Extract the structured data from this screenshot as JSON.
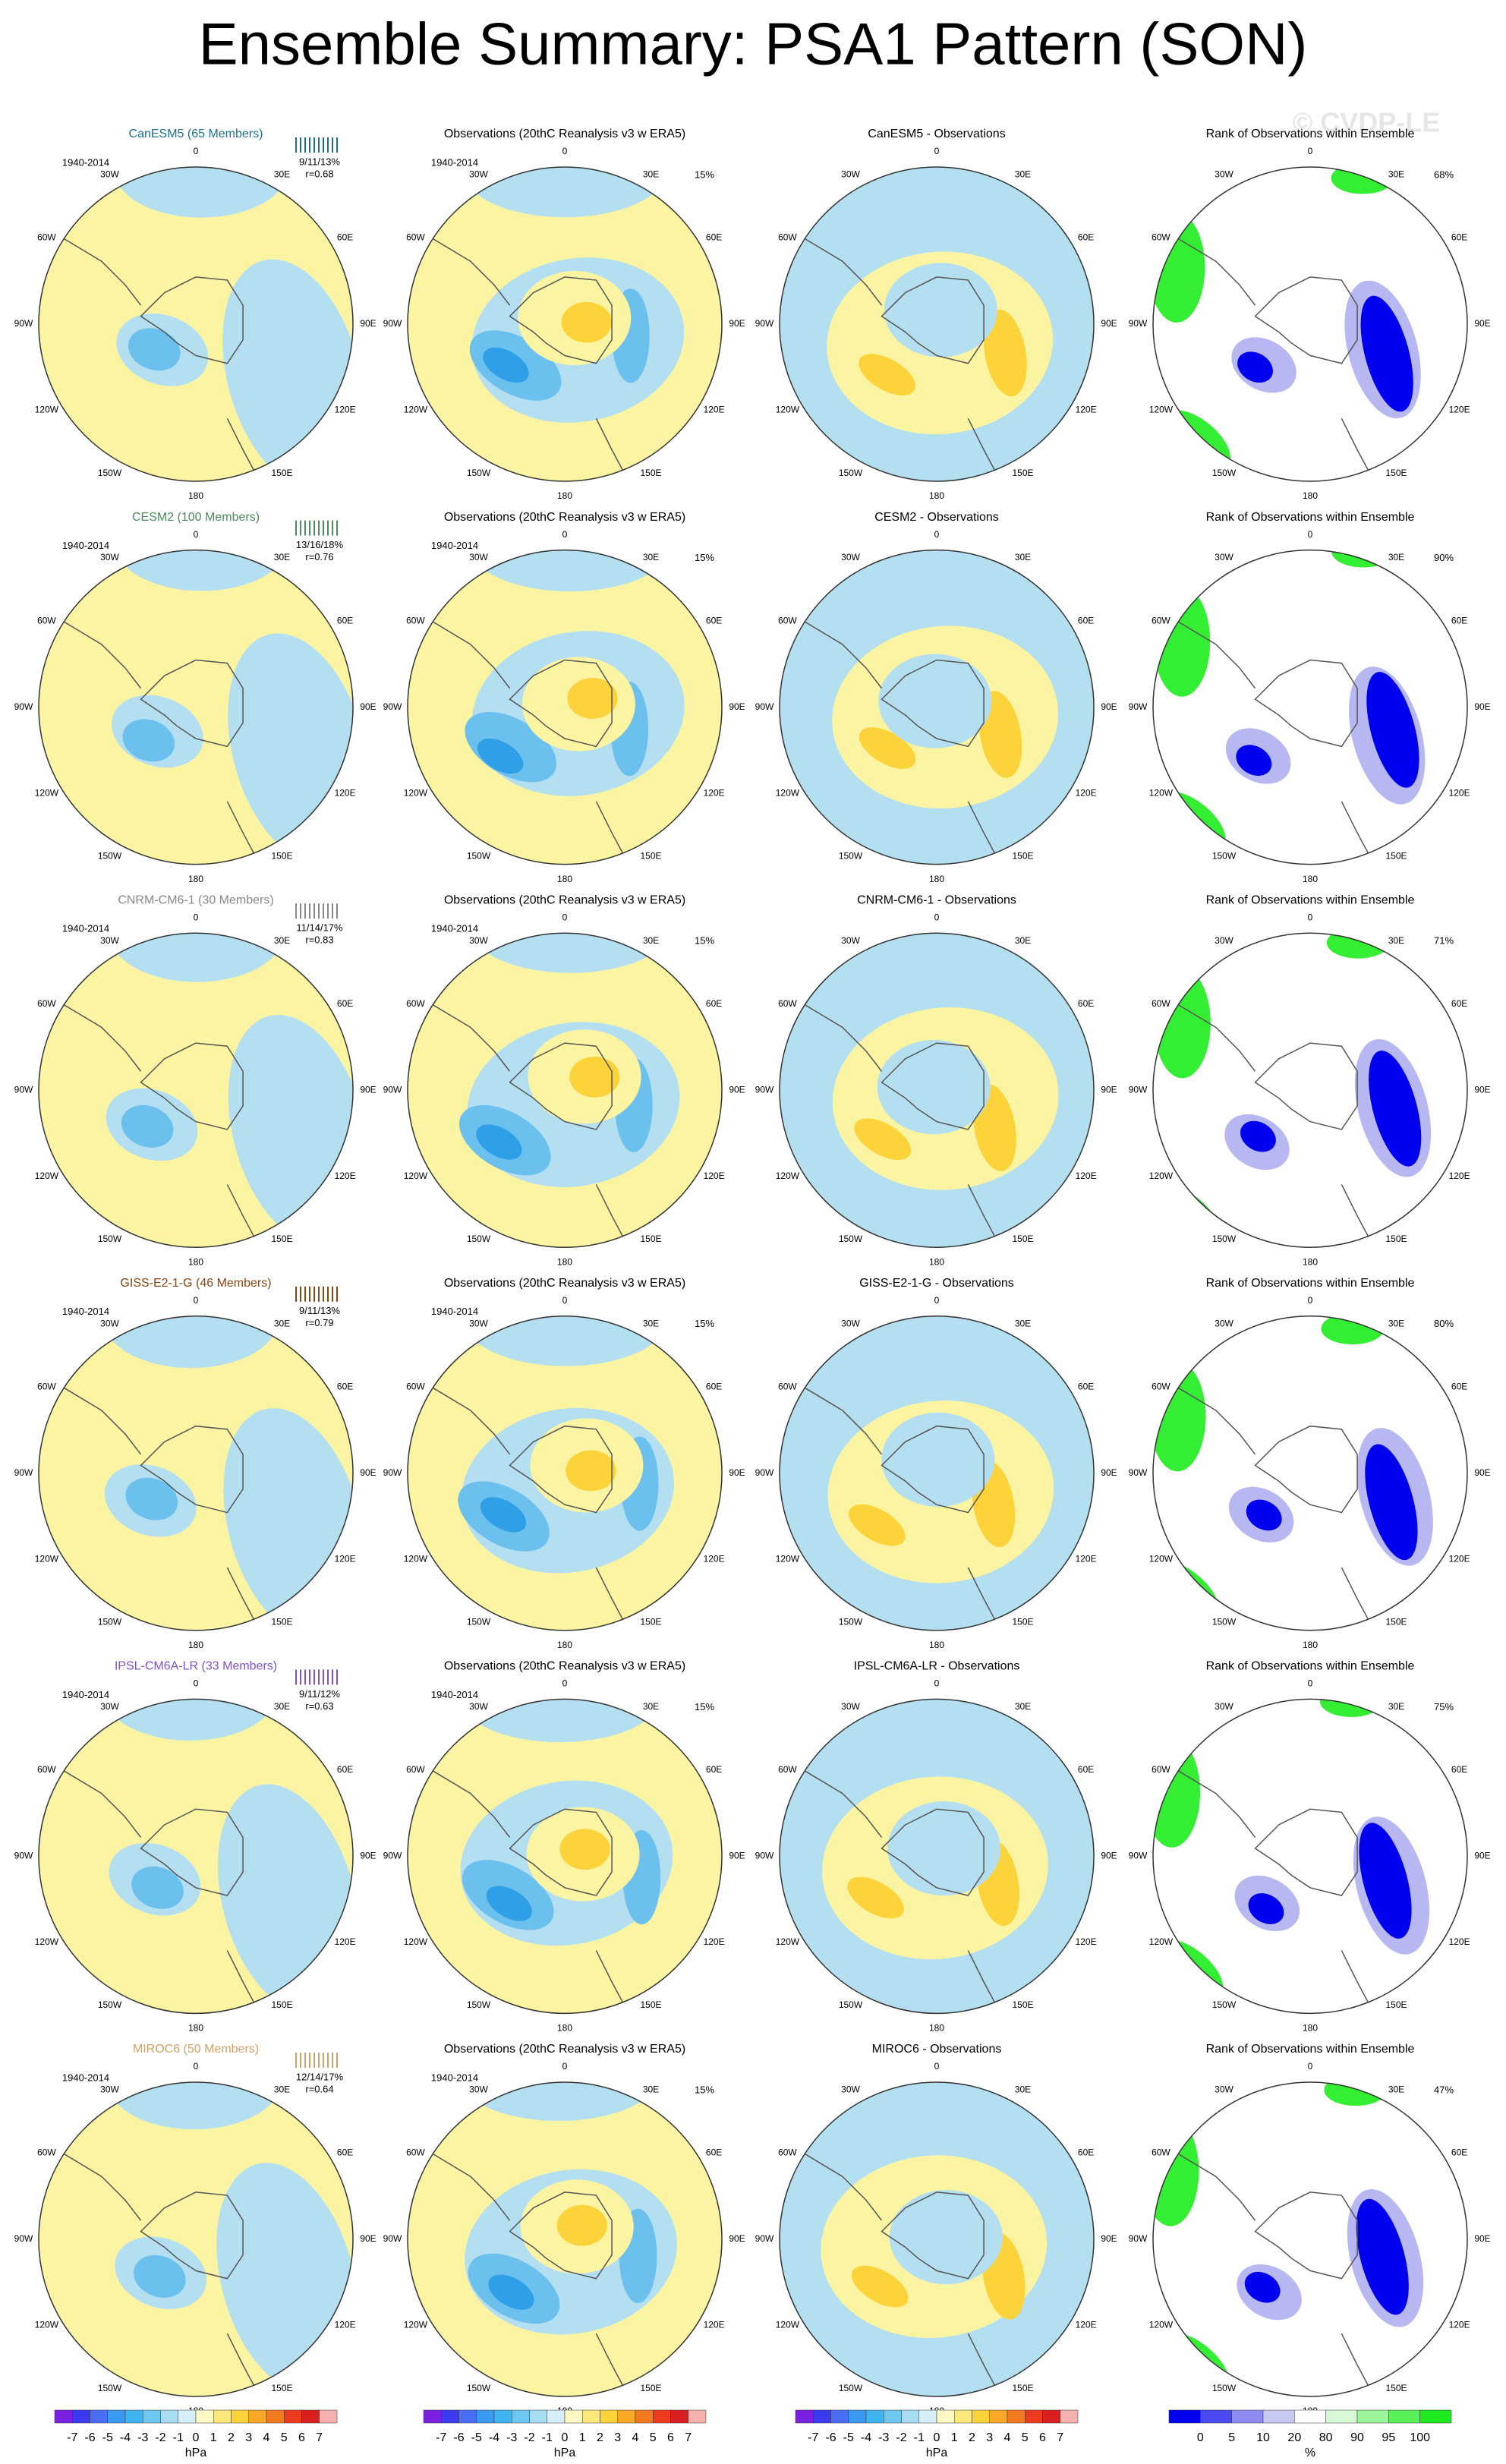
{
  "title": "Ensemble Summary: PSA1 Pattern (SON)",
  "watermark": "© CVDP-LE",
  "lon_labels": [
    "0",
    "30E",
    "60E",
    "90E",
    "120E",
    "150E",
    "180",
    "150W",
    "120W",
    "90W",
    "60W",
    "30W"
  ],
  "rows": [
    {
      "model": "CanESM5 (65 Members)",
      "model_color": "#1f6f8b",
      "period": "1940-2014",
      "stats": "9/11/13%",
      "r": "r=0.68",
      "obs_title": "Observations (20thC Reanalysis v3 w ERA5)",
      "obs_period": "1940-2014",
      "obs_pct": "15%",
      "diff_title": "CanESM5 - Observations",
      "rank_title": "Rank of Observations within Ensemble",
      "rank_pct": "68%"
    },
    {
      "model": "CESM2 (100 Members)",
      "model_color": "#4f8a5b",
      "period": "1940-2014",
      "stats": "13/16/18%",
      "r": "r=0.76",
      "obs_title": "Observations (20thC Reanalysis v3 w ERA5)",
      "obs_period": "1940-2014",
      "obs_pct": "15%",
      "diff_title": "CESM2 - Observations",
      "rank_title": "Rank of Observations within Ensemble",
      "rank_pct": "90%"
    },
    {
      "model": "CNRM-CM6-1 (30 Members)",
      "model_color": "#888888",
      "period": "1940-2014",
      "stats": "11/14/17%",
      "r": "r=0.83",
      "obs_title": "Observations (20thC Reanalysis v3 w ERA5)",
      "obs_period": "1940-2014",
      "obs_pct": "15%",
      "diff_title": "CNRM-CM6-1 - Observations",
      "rank_title": "Rank of Observations within Ensemble",
      "rank_pct": "71%"
    },
    {
      "model": "GISS-E2-1-G (46 Members)",
      "model_color": "#8b4513",
      "period": "1940-2014",
      "stats": "9/11/13%",
      "r": "r=0.79",
      "obs_title": "Observations (20thC Reanalysis v3 w ERA5)",
      "obs_period": "1940-2014",
      "obs_pct": "15%",
      "diff_title": "GISS-E2-1-G - Observations",
      "rank_title": "Rank of Observations within Ensemble",
      "rank_pct": "80%"
    },
    {
      "model": "IPSL-CM6A-LR (33 Members)",
      "model_color": "#7b52c9",
      "period": "1940-2014",
      "stats": "9/11/12%",
      "r": "r=0.63",
      "obs_title": "Observations (20thC Reanalysis v3 w ERA5)",
      "obs_period": "1940-2014",
      "obs_pct": "15%",
      "diff_title": "IPSL-CM6A-LR - Observations",
      "rank_title": "Rank of Observations within Ensemble",
      "rank_pct": "75%"
    },
    {
      "model": "MIROC6 (50 Members)",
      "model_color": "#d2a06a",
      "period": "1940-2014",
      "stats": "12/14/17%",
      "r": "r=0.64",
      "obs_title": "Observations (20thC Reanalysis v3 w ERA5)",
      "obs_period": "1940-2014",
      "obs_pct": "15%",
      "diff_title": "MIROC6 - Observations",
      "rank_title": "Rank of Observations within Ensemble",
      "rank_pct": "47%"
    }
  ],
  "colorbars": {
    "hpa_labels": [
      "-7",
      "-6",
      "-5",
      "-4",
      "-3",
      "-2",
      "-1",
      "0",
      "1",
      "2",
      "3",
      "4",
      "5",
      "6",
      "7"
    ],
    "hpa_unit": "hPa",
    "rank_labels": [
      "0",
      "5",
      "10",
      "20",
      "80",
      "90",
      "95",
      "100"
    ],
    "rank_unit": "%"
  }
}
